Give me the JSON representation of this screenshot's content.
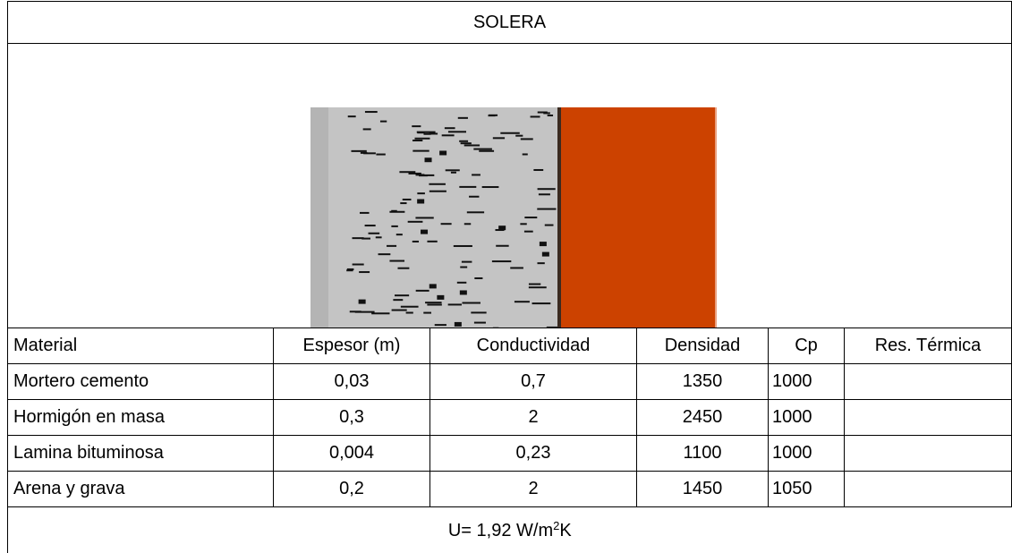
{
  "title": "SOLERA",
  "table": {
    "header": [
      "Material",
      "Espesor (m)",
      "Conductividad",
      "Densidad",
      "Cp",
      "Res. Térmica"
    ],
    "rows": [
      [
        "Mortero cemento",
        "0,03",
        "0,7",
        "1350",
        "1000",
        ""
      ],
      [
        "Hormigón en masa",
        "0,3",
        "2",
        "2450",
        "1000",
        ""
      ],
      [
        "Lamina bituminosa",
        "0,004",
        "0,23",
        "1100",
        "1000",
        ""
      ],
      [
        "Arena y grava",
        "0,2",
        "2",
        "1450",
        "1050",
        ""
      ]
    ]
  },
  "footer": {
    "text": "U= 1,92 W/m",
    "sup": "2",
    "unit": "K"
  }
}
